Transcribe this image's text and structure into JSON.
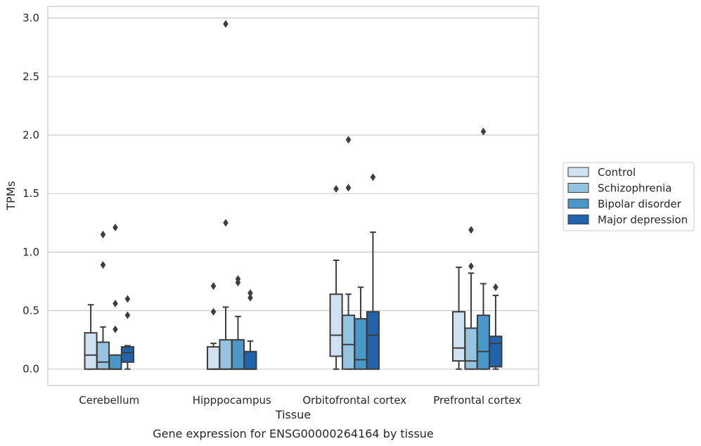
{
  "chart_data": {
    "type": "box",
    "caption": "Gene expression for ENSG00000264164 by tissue",
    "xlabel": "Tissue",
    "ylabel": "TPMs",
    "ylim": [
      -0.14,
      3.1
    ],
    "yticks": [
      "0.0",
      "0.5",
      "1.0",
      "1.5",
      "2.0",
      "2.5",
      "3.0"
    ],
    "grid": "horizontal",
    "legend_position": "right",
    "categories": [
      "Cerebellum",
      "Hipppocampus",
      "Orbitofrontal cortex",
      "Prefrontal cortex"
    ],
    "series": [
      {
        "name": "Control",
        "color": "#d0e1f2",
        "boxes": [
          {
            "whislo": 0.0,
            "q1": 0.0,
            "med": 0.12,
            "q3": 0.31,
            "whishi": 0.55,
            "fliers": []
          },
          {
            "whislo": 0.0,
            "q1": 0.0,
            "med": 0.0,
            "q3": 0.19,
            "whishi": 0.22,
            "fliers": [
              0.49,
              0.71
            ]
          },
          {
            "whislo": 0.0,
            "q1": 0.11,
            "med": 0.29,
            "q3": 0.64,
            "whishi": 0.93,
            "fliers": [
              1.54
            ]
          },
          {
            "whislo": 0.0,
            "q1": 0.07,
            "med": 0.18,
            "q3": 0.49,
            "whishi": 0.87,
            "fliers": []
          }
        ]
      },
      {
        "name": "Schizophrenia",
        "color": "#94c4df",
        "boxes": [
          {
            "whislo": 0.0,
            "q1": 0.0,
            "med": 0.06,
            "q3": 0.23,
            "whishi": 0.36,
            "fliers": [
              0.89,
              1.15
            ]
          },
          {
            "whislo": 0.0,
            "q1": 0.0,
            "med": 0.0,
            "q3": 0.25,
            "whishi": 0.53,
            "fliers": [
              1.25,
              2.95
            ]
          },
          {
            "whislo": 0.0,
            "q1": 0.0,
            "med": 0.21,
            "q3": 0.46,
            "whishi": 0.64,
            "fliers": [
              1.55,
              1.96
            ]
          },
          {
            "whislo": 0.0,
            "q1": 0.0,
            "med": 0.07,
            "q3": 0.35,
            "whishi": 0.82,
            "fliers": [
              0.88,
              1.19
            ]
          }
        ]
      },
      {
        "name": "Bipolar disorder",
        "color": "#4a98c9",
        "boxes": [
          {
            "whislo": 0.0,
            "q1": 0.0,
            "med": 0.0,
            "q3": 0.12,
            "whishi": 0.12,
            "fliers": [
              0.34,
              0.56,
              1.21
            ]
          },
          {
            "whislo": 0.0,
            "q1": 0.0,
            "med": 0.0,
            "q3": 0.25,
            "whishi": 0.45,
            "fliers": [
              0.74,
              0.77
            ]
          },
          {
            "whislo": 0.0,
            "q1": 0.0,
            "med": 0.08,
            "q3": 0.43,
            "whishi": 0.7,
            "fliers": []
          },
          {
            "whislo": 0.0,
            "q1": 0.0,
            "med": 0.15,
            "q3": 0.46,
            "whishi": 0.73,
            "fliers": [
              2.03
            ]
          }
        ]
      },
      {
        "name": "Major depression",
        "color": "#2164ab",
        "boxes": [
          {
            "whislo": 0.0,
            "q1": 0.06,
            "med": 0.14,
            "q3": 0.19,
            "whishi": 0.2,
            "fliers": [
              0.46,
              0.6
            ]
          },
          {
            "whislo": 0.0,
            "q1": 0.0,
            "med": 0.0,
            "q3": 0.15,
            "whishi": 0.24,
            "fliers": [
              0.61,
              0.65
            ]
          },
          {
            "whislo": 0.0,
            "q1": 0.0,
            "med": 0.29,
            "q3": 0.49,
            "whishi": 1.17,
            "fliers": [
              1.64
            ]
          },
          {
            "whislo": 0.0,
            "q1": 0.02,
            "med": 0.22,
            "q3": 0.28,
            "whishi": 0.63,
            "fliers": [
              0.7
            ]
          }
        ]
      }
    ]
  }
}
